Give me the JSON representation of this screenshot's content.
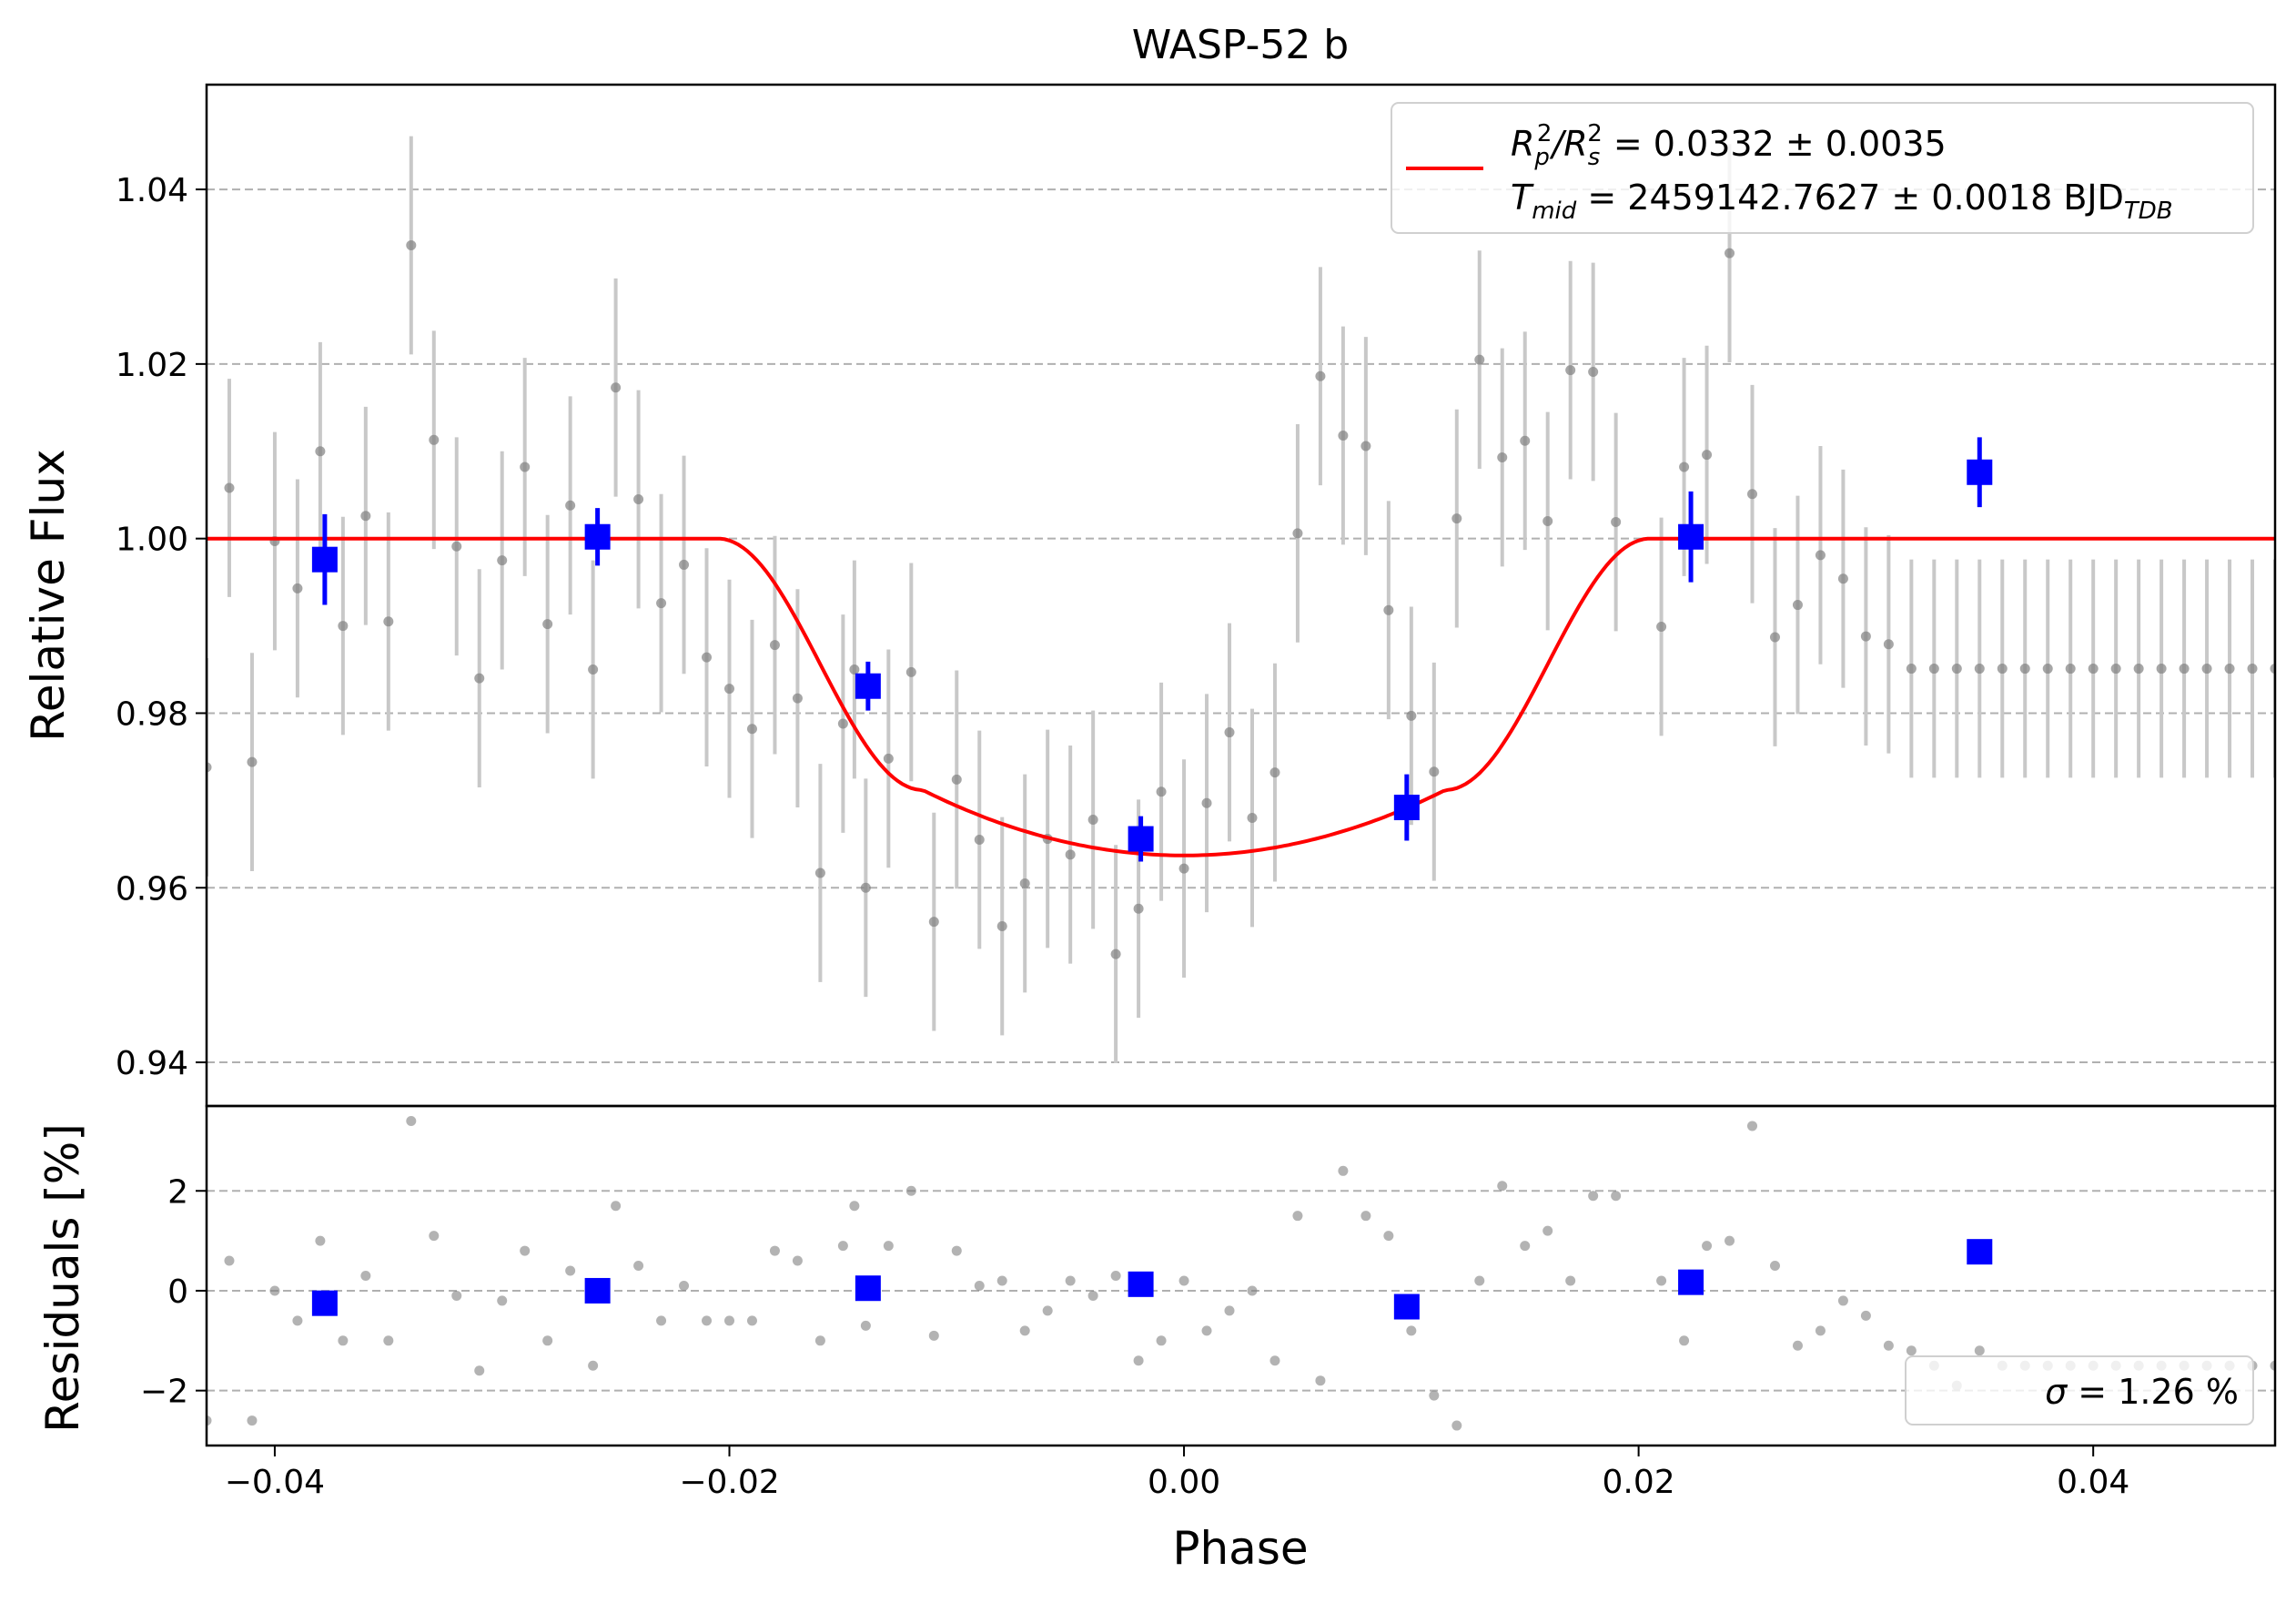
{
  "chart_data": [
    {
      "type": "scatter",
      "title": "WASP-52 b",
      "ylabel": "Relative Flux",
      "xlim": [
        -0.043,
        0.048
      ],
      "ylim": [
        0.935,
        1.052
      ],
      "yticks": [
        0.94,
        0.96,
        0.98,
        1.0,
        1.02,
        1.04
      ],
      "ytick_labels": [
        "0.94",
        "0.96",
        "0.98",
        "1.00",
        "1.02",
        "1.04"
      ],
      "grid": "horizontal dashed",
      "legend_position": "top-right",
      "legend": {
        "line1": {
          "prefix": "R",
          "sub1": "p",
          "sup1": "2",
          "slash": "/R",
          "sub2": "s",
          "sup2": "2",
          "rest": " = 0.0332 ± 0.0035"
        },
        "line2": {
          "prefix": "T",
          "sub": "mid",
          "rest": " = 2459142.7627 ± 0.0018 BJD",
          "sub_end": "TDB"
        }
      },
      "colors": {
        "data": "#808080",
        "errorbar": "#c8c8c8",
        "binned": "#0000ff",
        "model": "#ff0000",
        "grid": "#b0b0b0"
      },
      "model": {
        "name": "transit model",
        "rp_rs_sq": 0.0332,
        "depth": 0.0363,
        "t_ingress_start": -0.0205,
        "t_ingress_end": -0.0115,
        "t_egress_start": 0.0115,
        "t_egress_end": 0.0205
      },
      "raw": {
        "x": [
          -0.043,
          -0.042,
          -0.041,
          -0.04,
          -0.039,
          -0.038,
          -0.037,
          -0.036,
          -0.035,
          -0.034,
          -0.033,
          -0.032,
          -0.031,
          -0.03,
          -0.029,
          -0.028,
          -0.027,
          -0.026,
          -0.025,
          -0.024,
          -0.023,
          -0.022,
          -0.021,
          -0.02,
          -0.019,
          -0.018,
          -0.017,
          -0.016,
          -0.015,
          -0.0145,
          -0.014,
          -0.013,
          -0.012,
          -0.011,
          -0.01,
          -0.009,
          -0.008,
          -0.007,
          -0.006,
          -0.005,
          -0.004,
          -0.003,
          -0.002,
          -0.001,
          0.0,
          0.001,
          0.002,
          0.003,
          0.004,
          0.005,
          0.006,
          0.007,
          0.008,
          0.009,
          0.01,
          0.011,
          0.012,
          0.013,
          0.014,
          0.015,
          0.016,
          0.017,
          0.018,
          0.019,
          0.021,
          0.022,
          0.023,
          0.024,
          0.025,
          0.026,
          0.027,
          0.028,
          0.029,
          0.03,
          0.031,
          0.032,
          0.033,
          0.034,
          0.035,
          0.036,
          0.037,
          0.038,
          0.039,
          0.04,
          0.041,
          0.042,
          0.043,
          0.044,
          0.045,
          0.046,
          0.047,
          0.048
        ],
        "y": [
          0.9738,
          1.0058,
          0.9744,
          0.9997,
          0.9943,
          1.01,
          0.99,
          1.0026,
          0.9905,
          1.0336,
          1.0113,
          0.9991,
          0.984,
          0.9975,
          1.0082,
          0.9902,
          1.0038,
          0.985,
          1.0173,
          1.0045,
          0.9926,
          0.997,
          0.9864,
          0.9828,
          0.9782,
          0.9878,
          0.9817,
          0.9617,
          0.9788,
          0.985,
          0.96,
          0.9748,
          0.9847,
          0.9561,
          0.9724,
          0.9655,
          0.9556,
          0.9605,
          0.9656,
          0.9638,
          0.9678,
          0.9524,
          0.9576,
          0.971,
          0.9622,
          0.9697,
          0.9778,
          0.968,
          0.9732,
          1.0006,
          1.0186,
          1.0118,
          1.0106,
          0.9918,
          0.9797,
          0.9733,
          1.0023,
          1.0205,
          1.0093,
          1.0112,
          1.002,
          1.0193,
          1.0191,
          1.0019,
          0.9899,
          1.0082,
          1.0096,
          1.0327,
          1.0051,
          0.9887,
          0.9924,
          0.9981,
          0.9954,
          0.9888,
          0.9879,
          0.9851,
          0.9851,
          0.9851,
          0.9851,
          0.9851,
          0.9851,
          0.9851,
          0.9851,
          0.9851,
          0.9851,
          0.9851,
          0.9851,
          0.9851,
          0.9851,
          0.9851,
          0.9851,
          0.9851
        ],
        "yerr": [
          0.0125,
          0.0125,
          0.0125,
          0.0125,
          0.0125,
          0.0125,
          0.0125,
          0.0125,
          0.0125,
          0.0125,
          0.0125,
          0.0125,
          0.0125,
          0.0125,
          0.0125,
          0.0125,
          0.0125,
          0.0125,
          0.0125,
          0.0125,
          0.0125,
          0.0125,
          0.0125,
          0.0125,
          0.0125,
          0.0125,
          0.0125,
          0.0125,
          0.0125,
          0.0125,
          0.0125,
          0.0125,
          0.0125,
          0.0125,
          0.0125,
          0.0125,
          0.0125,
          0.0125,
          0.0125,
          0.0125,
          0.0125,
          0.0125,
          0.0125,
          0.0125,
          0.0125,
          0.0125,
          0.0125,
          0.0125,
          0.0125,
          0.0125,
          0.0125,
          0.0125,
          0.0125,
          0.0125,
          0.0125,
          0.0125,
          0.0125,
          0.0125,
          0.0125,
          0.0125,
          0.0125,
          0.0125,
          0.0125,
          0.0125,
          0.0125,
          0.0125,
          0.0125,
          0.0125,
          0.0125,
          0.0125,
          0.0125,
          0.0125,
          0.0125,
          0.0125,
          0.0125,
          0.0125,
          0.0125,
          0.0125,
          0.0125,
          0.0125,
          0.0125,
          0.0125,
          0.0125,
          0.0125,
          0.0125,
          0.0125,
          0.0125,
          0.0125,
          0.0125,
          0.0125,
          0.0125,
          0.0125
        ]
      },
      "binned": {
        "x": [
          -0.0378,
          -0.0258,
          -0.0139,
          -0.0019,
          0.0098,
          0.0223,
          0.035
        ],
        "y": [
          0.9976,
          1.0002,
          0.9831,
          0.9656,
          0.9692,
          1.0002,
          1.0076
        ],
        "yerr": [
          0.0052,
          0.0033,
          0.0028,
          0.0026,
          0.0038,
          0.0052,
          0.004
        ]
      }
    },
    {
      "type": "scatter",
      "ylabel": "Residuals [%]",
      "xlabel": "Phase",
      "xlim": [
        -0.043,
        0.048
      ],
      "ylim": [
        -3.1,
        3.7
      ],
      "yticks": [
        -2,
        0,
        2
      ],
      "ytick_labels": [
        "−2",
        "0",
        "2"
      ],
      "xticks": [
        -0.04,
        -0.02,
        0.0,
        0.02,
        0.04
      ],
      "xtick_labels": [
        "−0.04",
        "−0.02",
        "0.00",
        "0.02",
        "0.04"
      ],
      "grid": "horizontal dashed",
      "legend_position": "bottom-right",
      "sigma_text": {
        "symbol": "σ",
        "rest": " = 1.26 %"
      },
      "raw_residuals": {
        "x": [
          -0.043,
          -0.042,
          -0.041,
          -0.04,
          -0.039,
          -0.038,
          -0.037,
          -0.036,
          -0.035,
          -0.034,
          -0.033,
          -0.032,
          -0.031,
          -0.03,
          -0.029,
          -0.028,
          -0.027,
          -0.026,
          -0.025,
          -0.024,
          -0.023,
          -0.022,
          -0.021,
          -0.02,
          -0.019,
          -0.018,
          -0.017,
          -0.016,
          -0.015,
          -0.0145,
          -0.014,
          -0.013,
          -0.012,
          -0.011,
          -0.01,
          -0.009,
          -0.008,
          -0.007,
          -0.006,
          -0.005,
          -0.004,
          -0.003,
          -0.002,
          -0.001,
          0.0,
          0.001,
          0.002,
          0.003,
          0.004,
          0.005,
          0.006,
          0.007,
          0.008,
          0.009,
          0.01,
          0.011,
          0.012,
          0.013,
          0.014,
          0.015,
          0.016,
          0.017,
          0.018,
          0.019,
          0.021,
          0.022,
          0.023,
          0.024,
          0.025,
          0.026,
          0.027,
          0.028,
          0.029,
          0.03,
          0.031,
          0.032,
          0.033,
          0.034,
          0.035,
          0.036,
          0.037,
          0.038,
          0.039,
          0.04,
          0.041,
          0.042,
          0.043,
          0.044,
          0.045,
          0.046,
          0.047,
          0.048
        ],
        "y": [
          -2.6,
          0.6,
          -2.6,
          0.0,
          -0.6,
          1.0,
          -1.0,
          0.3,
          -1.0,
          3.4,
          1.1,
          -0.1,
          -1.6,
          -0.2,
          0.8,
          -1.0,
          0.4,
          -1.5,
          1.7,
          0.5,
          -0.6,
          0.1,
          -0.6,
          -0.6,
          -0.6,
          0.8,
          0.6,
          -1.0,
          0.9,
          1.7,
          -0.7,
          0.9,
          2.0,
          -0.9,
          0.8,
          0.1,
          0.2,
          -0.8,
          -0.4,
          0.2,
          -0.1,
          0.3,
          -1.4,
          -1.0,
          0.2,
          -0.8,
          -0.4,
          0.0,
          -1.4,
          1.5,
          -1.8,
          2.4,
          1.5,
          1.1,
          -0.8,
          -2.1,
          -2.7,
          0.2,
          2.1,
          0.9,
          1.2,
          0.2,
          1.9,
          1.9,
          0.2,
          -1.0,
          0.9,
          1.0,
          3.3,
          0.5,
          -1.1,
          -0.8,
          -0.2,
          -0.5,
          -1.1,
          -1.2,
          -1.5,
          -1.9,
          -1.2,
          -1.5,
          -1.5,
          -1.5,
          -1.5,
          -1.5,
          -1.5,
          -1.5,
          -1.5,
          -1.5,
          -1.5,
          -1.5,
          -1.5,
          -1.5
        ]
      },
      "binned_residuals": {
        "x": [
          -0.0378,
          -0.0258,
          -0.0139,
          -0.0019,
          0.0098,
          0.0223,
          0.035
        ],
        "y": [
          -0.25,
          0.0,
          0.05,
          0.13,
          -0.32,
          0.17,
          0.78
        ]
      }
    }
  ]
}
